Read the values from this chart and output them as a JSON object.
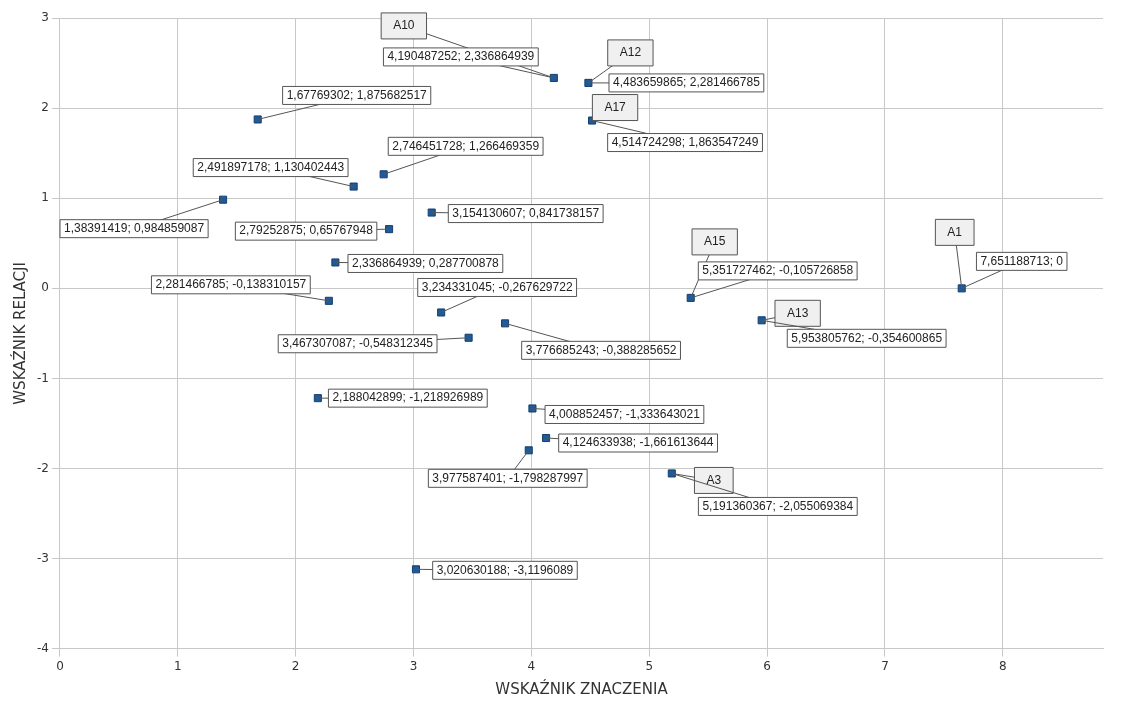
{
  "chart_data": {
    "type": "scatter",
    "xlabel": "WSKAŹNIK ZNACZENIA",
    "ylabel": "WSKAŹNIK RELACJI",
    "x": [
      7.651188713,
      4.190487252,
      4.483659865,
      4.514724298,
      1.67769302,
      2.746451728,
      2.491897178,
      1.38391419,
      3.154130607,
      2.79252875,
      2.336864939,
      5.351727462,
      2.281466785,
      3.234331045,
      3.467307087,
      3.776685243,
      5.953805762,
      2.188042899,
      4.008852457,
      4.124633938,
      3.977587401,
      5.191360367,
      3.020630188
    ],
    "values": [
      0,
      2.336864939,
      2.281466785,
      1.863547249,
      1.875682517,
      1.266469359,
      1.130402443,
      0.984859087,
      0.841738157,
      0.65767948,
      0.287700878,
      -0.105726858,
      -0.138310157,
      -0.267629722,
      -0.548312345,
      -0.388285652,
      -0.354600865,
      -1.218926989,
      -1.333643021,
      -1.661613644,
      -1.798287997,
      -2.055069384,
      -3.1196089
    ],
    "value_labels": [
      "7,651188713; 0",
      "4,190487252; 2,336864939",
      "4,483659865; 2,281466785",
      "4,514724298; 1,863547249",
      "1,67769302; 1,875682517",
      "2,746451728; 1,266469359",
      "2,491897178; 1,130402443",
      "1,38391419; 0,984859087",
      "3,154130607; 0,841738157",
      "2,79252875; 0,65767948",
      "2,336864939; 0,287700878",
      "5,351727462; -0,105726858",
      "2,281466785; -0,138310157",
      "3,234331045; -0,267629722",
      "3,467307087; -0,548312345",
      "3,776685243; -0,388285652",
      "5,953805762; -0,354600865",
      "2,188042899; -1,218926989",
      "4,008852457; -1,333643021",
      "4,124633938; -1,661613644",
      "3,977587401; -1,798287997",
      "5,191360367; -2,055069384",
      "3,020630188; -3,1196089"
    ],
    "annotations": [
      {
        "text": "A1",
        "x": 7.651188713,
        "y": 0
      },
      {
        "text": "A10",
        "x": 4.190487252,
        "y": 2.336864939
      },
      {
        "text": "A12",
        "x": 4.483659865,
        "y": 2.281466785
      },
      {
        "text": "A17",
        "x": 4.514724298,
        "y": 1.863547249
      },
      {
        "text": "A15",
        "x": 5.351727462,
        "y": -0.105726858
      },
      {
        "text": "A13",
        "x": 5.953805762,
        "y": -0.354600865
      },
      {
        "text": "A3",
        "x": 5.191360367,
        "y": -2.055069384
      }
    ],
    "color": "#1f5b9a",
    "marker": "square",
    "grid": true,
    "legend": false,
    "xlim": [
      0,
      8.85
    ],
    "xticks": [
      0,
      1,
      2,
      3,
      4,
      5,
      6,
      7,
      8
    ],
    "ylim": [
      -4,
      3
    ],
    "yticks": [
      -4,
      -3,
      -2,
      -1,
      0,
      1,
      2,
      3
    ]
  }
}
